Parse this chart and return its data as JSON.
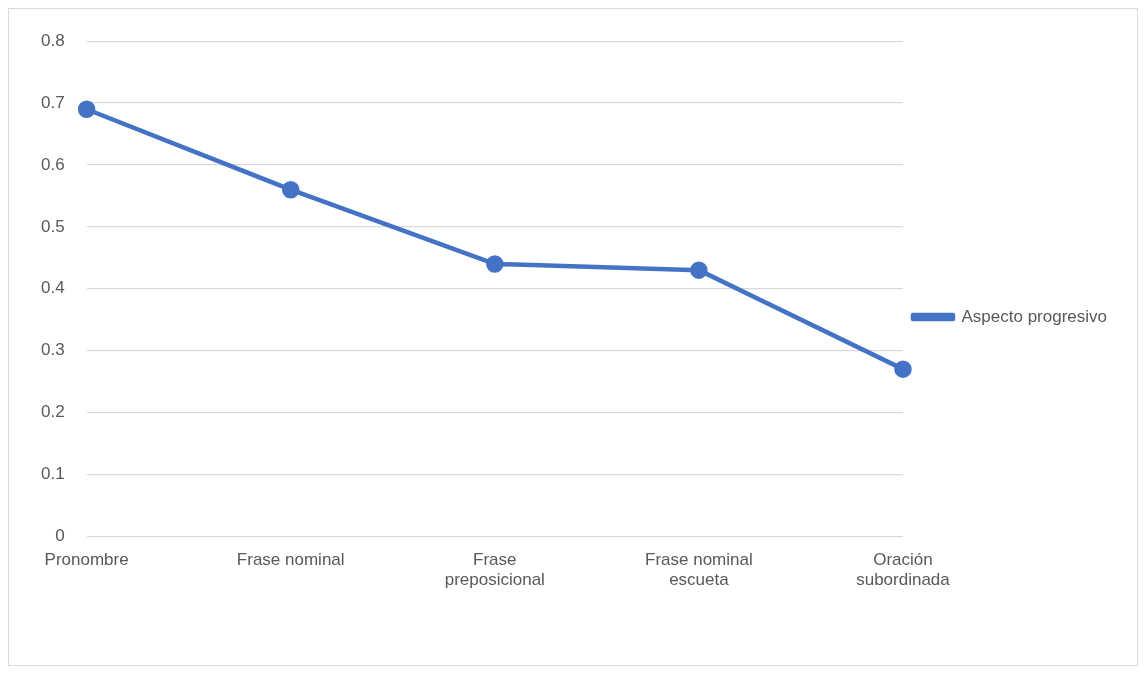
{
  "chart_data": {
    "type": "line",
    "categories": [
      "Pronombre",
      "Frase nominal",
      "Frase preposicional",
      "Frase nominal escueta",
      "Oración subordinada"
    ],
    "series": [
      {
        "name": "Aspecto progresivo",
        "color": "#4472c4",
        "values": [
          0.69,
          0.56,
          0.44,
          0.43,
          0.27
        ]
      }
    ],
    "ylim": [
      0,
      0.8
    ],
    "yticks": [
      0,
      0.1,
      0.2,
      0.3,
      0.4,
      0.5,
      0.6,
      0.7,
      0.8
    ],
    "grid": "y",
    "legend": "right",
    "marker": "circle",
    "line_style": "solid"
  }
}
